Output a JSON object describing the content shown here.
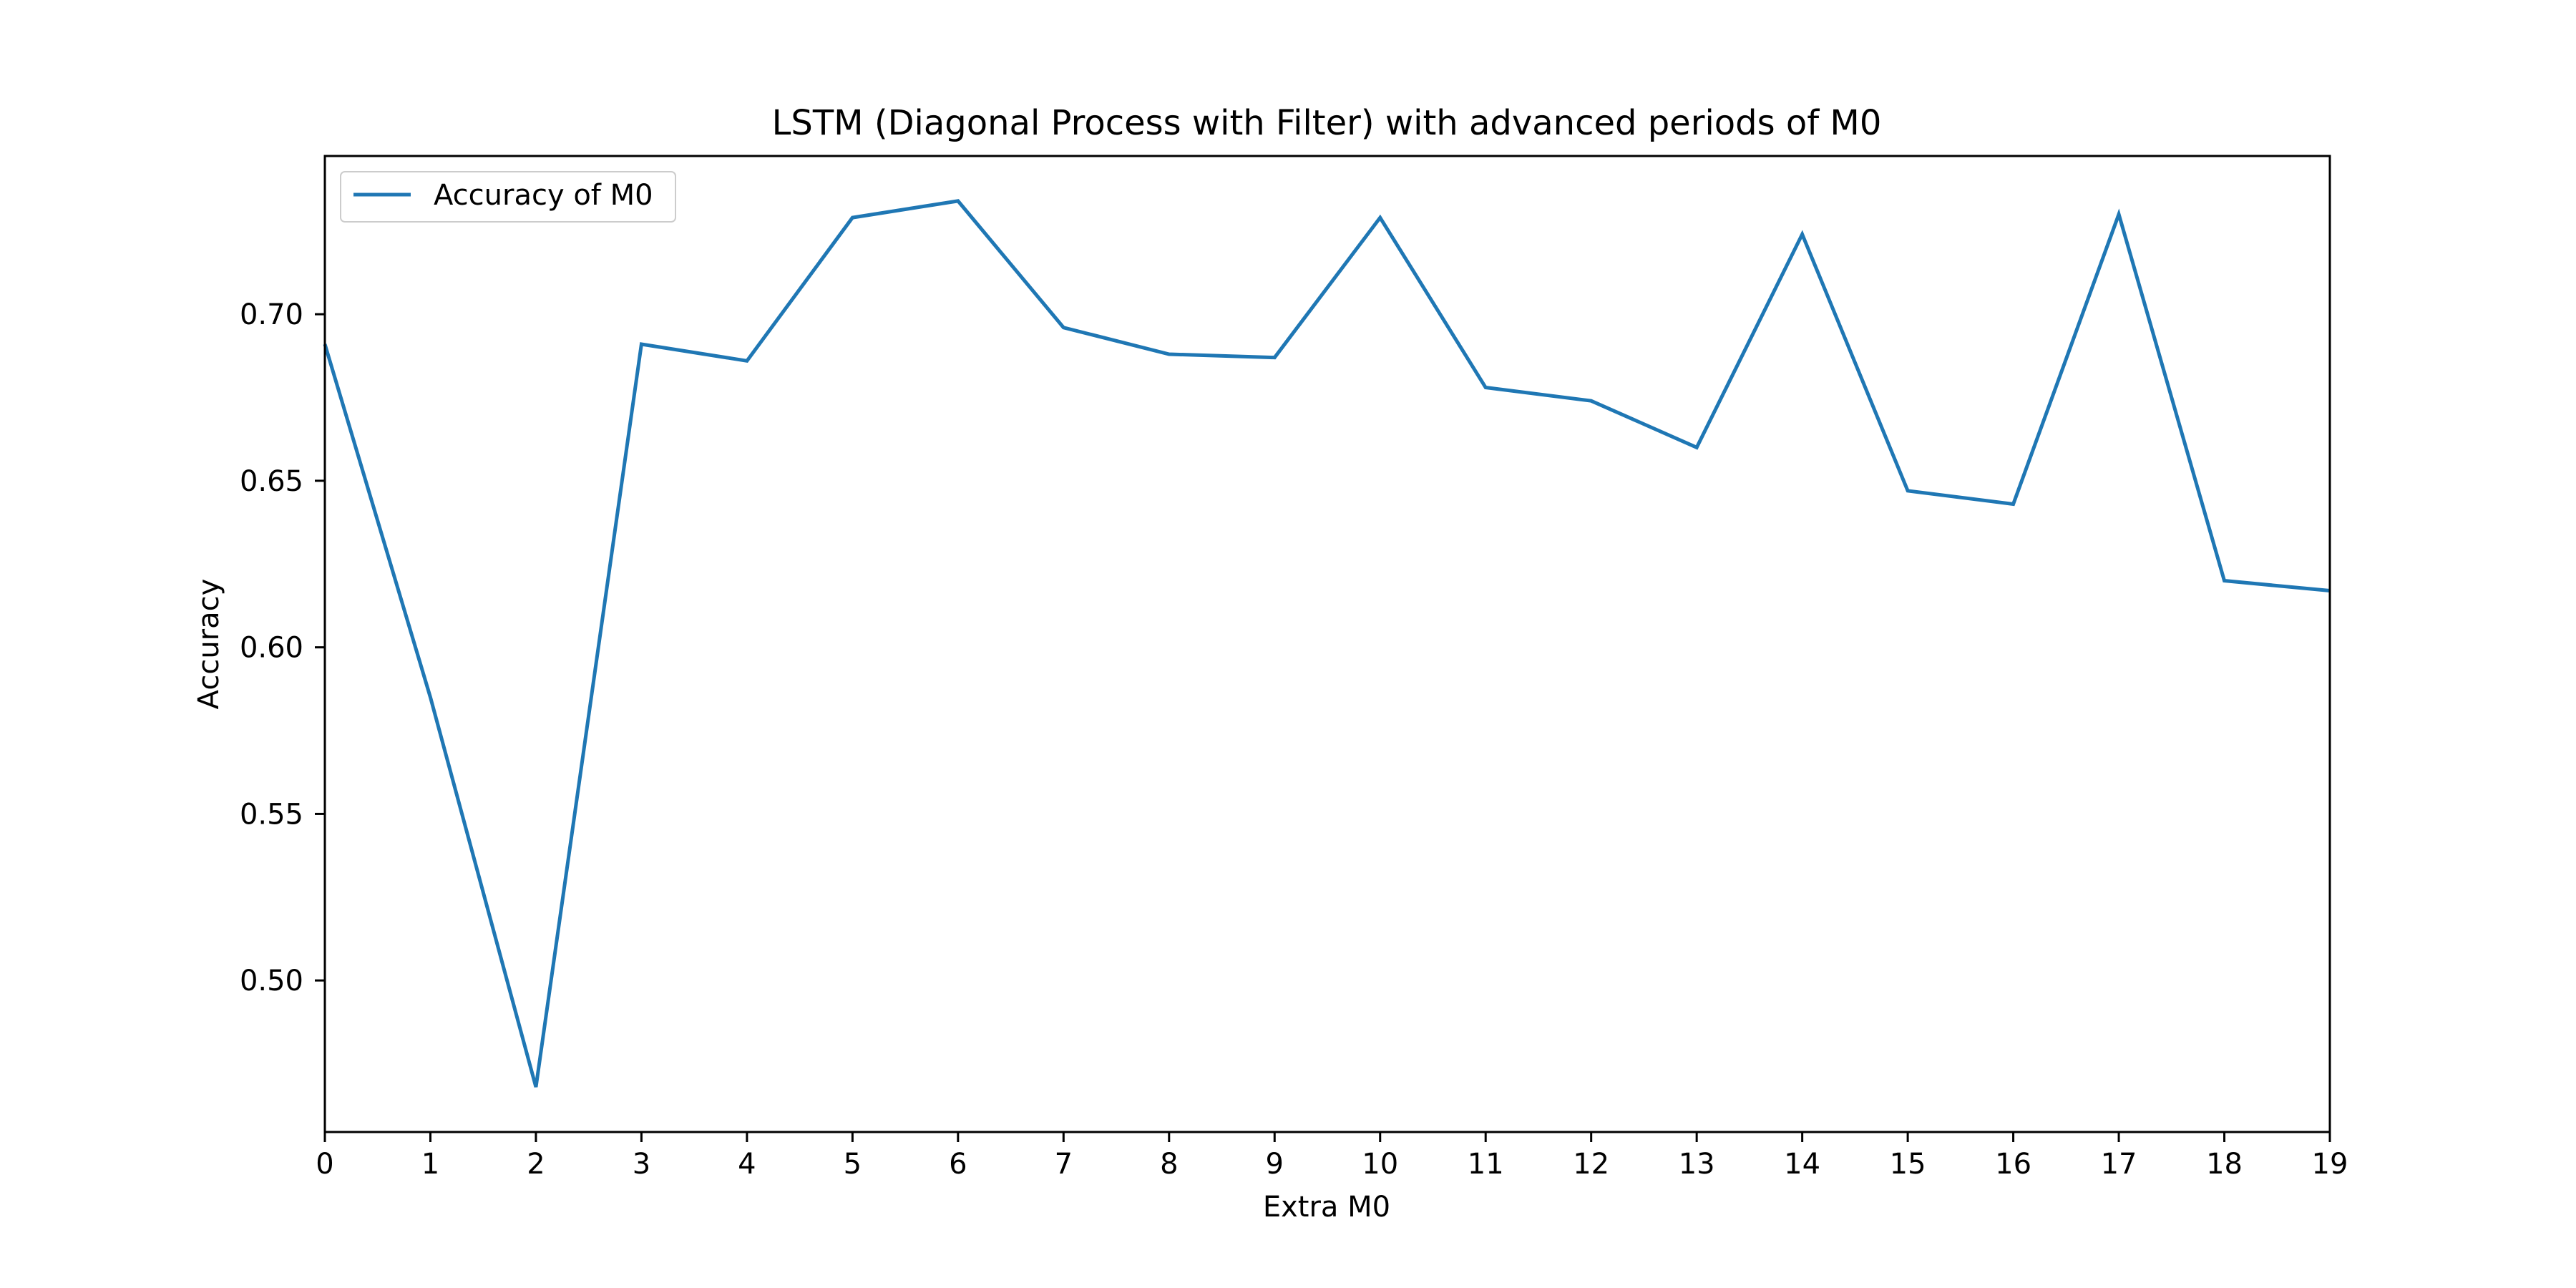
{
  "chart_data": {
    "type": "line",
    "title": "LSTM (Diagonal Process with Filter) with advanced periods of M0",
    "xlabel": "Extra M0",
    "ylabel": "Accuracy",
    "x": [
      0,
      1,
      2,
      3,
      4,
      5,
      6,
      7,
      8,
      9,
      10,
      11,
      12,
      13,
      14,
      15,
      16,
      17,
      18,
      19
    ],
    "series": [
      {
        "name": "Accuracy of M0",
        "color": "#1f77b4",
        "values": [
          0.691,
          0.585,
          0.468,
          0.691,
          0.686,
          0.729,
          0.734,
          0.696,
          0.688,
          0.687,
          0.729,
          0.678,
          0.674,
          0.66,
          0.724,
          0.647,
          0.643,
          0.73,
          0.62,
          0.617
        ]
      }
    ],
    "xlim": [
      0,
      19
    ],
    "ylim": [
      0.4545,
      0.7475
    ],
    "xticks": [
      "0",
      "1",
      "2",
      "3",
      "4",
      "5",
      "6",
      "7",
      "8",
      "9",
      "10",
      "11",
      "12",
      "13",
      "14",
      "15",
      "16",
      "17",
      "18",
      "19"
    ],
    "yticks": [
      "0.50",
      "0.55",
      "0.60",
      "0.65",
      "0.70"
    ],
    "ytick_values": [
      0.5,
      0.55,
      0.6,
      0.65,
      0.7
    ],
    "grid": false,
    "legend_position": "upper-left"
  }
}
